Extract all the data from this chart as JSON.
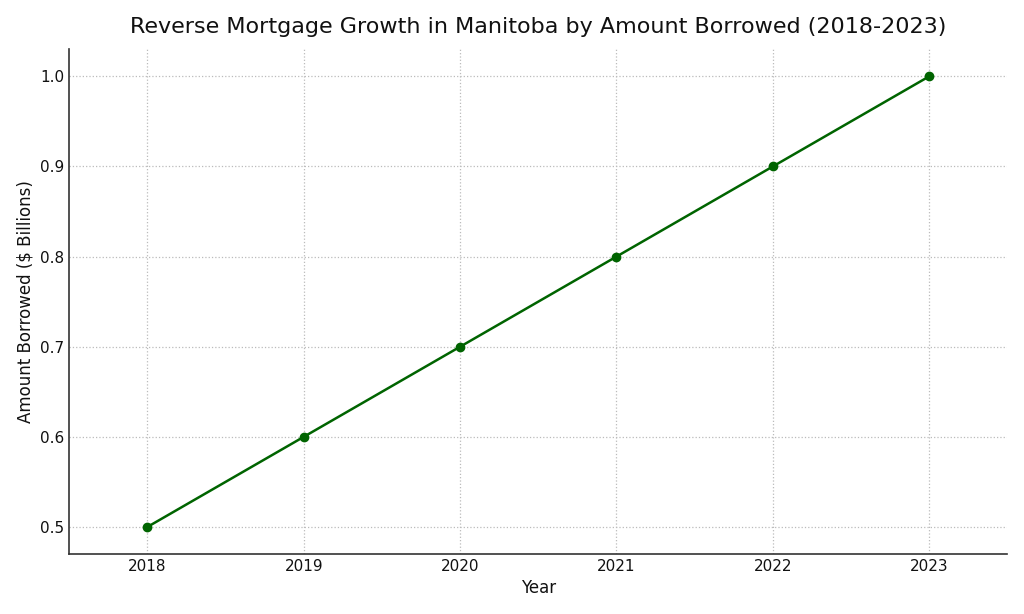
{
  "title": "Reverse Mortgage Growth in Manitoba by Amount Borrowed (2018-2023)",
  "xlabel": "Year",
  "ylabel": "Amount Borrowed ($ Billions)",
  "years": [
    2018,
    2019,
    2020,
    2021,
    2022,
    2023
  ],
  "values": [
    0.5,
    0.6,
    0.7,
    0.8,
    0.9,
    1.0
  ],
  "line_color": "#006400",
  "marker": "o",
  "marker_color": "#006400",
  "marker_size": 6,
  "line_width": 1.8,
  "ylim": [
    0.47,
    1.03
  ],
  "xlim": [
    2017.5,
    2023.5
  ],
  "yticks": [
    0.5,
    0.6,
    0.7,
    0.8,
    0.9,
    1.0
  ],
  "background_color": "#ffffff",
  "grid_color": "#bbbbbb",
  "grid_style": ":",
  "grid_alpha": 1.0,
  "title_fontsize": 16,
  "label_fontsize": 12,
  "tick_fontsize": 11,
  "spine_color": "#333333",
  "fig_width": 10.24,
  "fig_height": 6.14
}
